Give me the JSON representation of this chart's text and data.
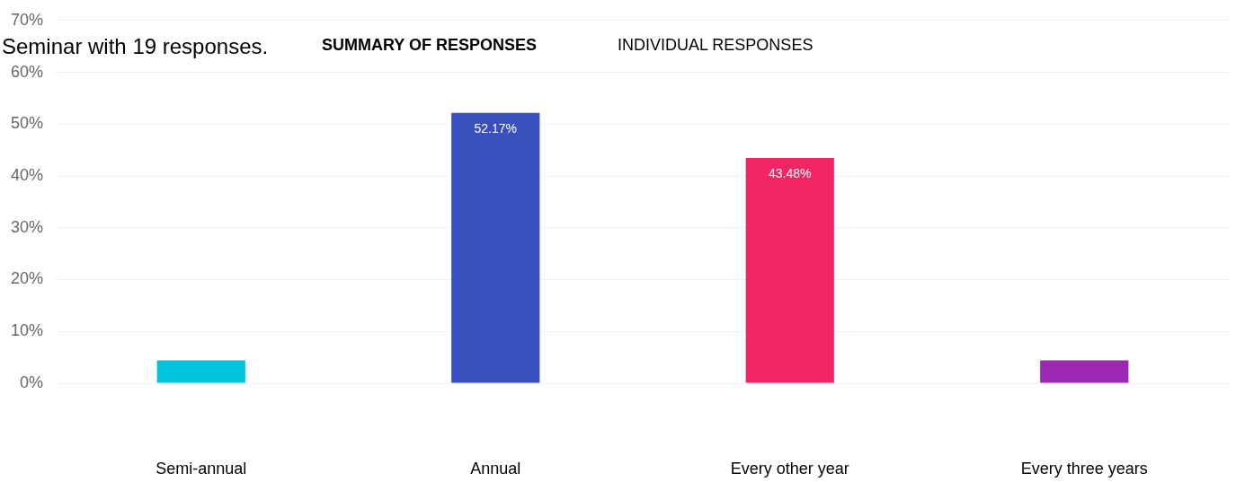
{
  "chart_data": {
    "type": "bar",
    "annotations": [
      "Seminar with 19 responses.",
      "SUMMARY OF RESPONSES",
      "INDIVIDUAL RESPONSES"
    ],
    "categories": [
      "Semi-annual",
      "Annual",
      "Every other year",
      "Every three years"
    ],
    "values": [
      4.4,
      52.17,
      43.48,
      4.4
    ],
    "colors": [
      "#00c4d9",
      "#3b50bf",
      "#f12563",
      "#9c27b0"
    ],
    "value_labels": [
      null,
      "52.17%",
      "43.48%",
      null
    ],
    "ylim": [
      0,
      70
    ],
    "yticks": [
      {
        "value": 0,
        "label": "0%"
      },
      {
        "value": 10,
        "label": "10%"
      },
      {
        "value": 20,
        "label": "20%"
      },
      {
        "value": 30,
        "label": "30%"
      },
      {
        "value": 40,
        "label": "40%"
      },
      {
        "value": 50,
        "label": "50%"
      },
      {
        "value": 60,
        "label": "60%"
      },
      {
        "value": 70,
        "label": "70%"
      }
    ],
    "grid": "y"
  }
}
